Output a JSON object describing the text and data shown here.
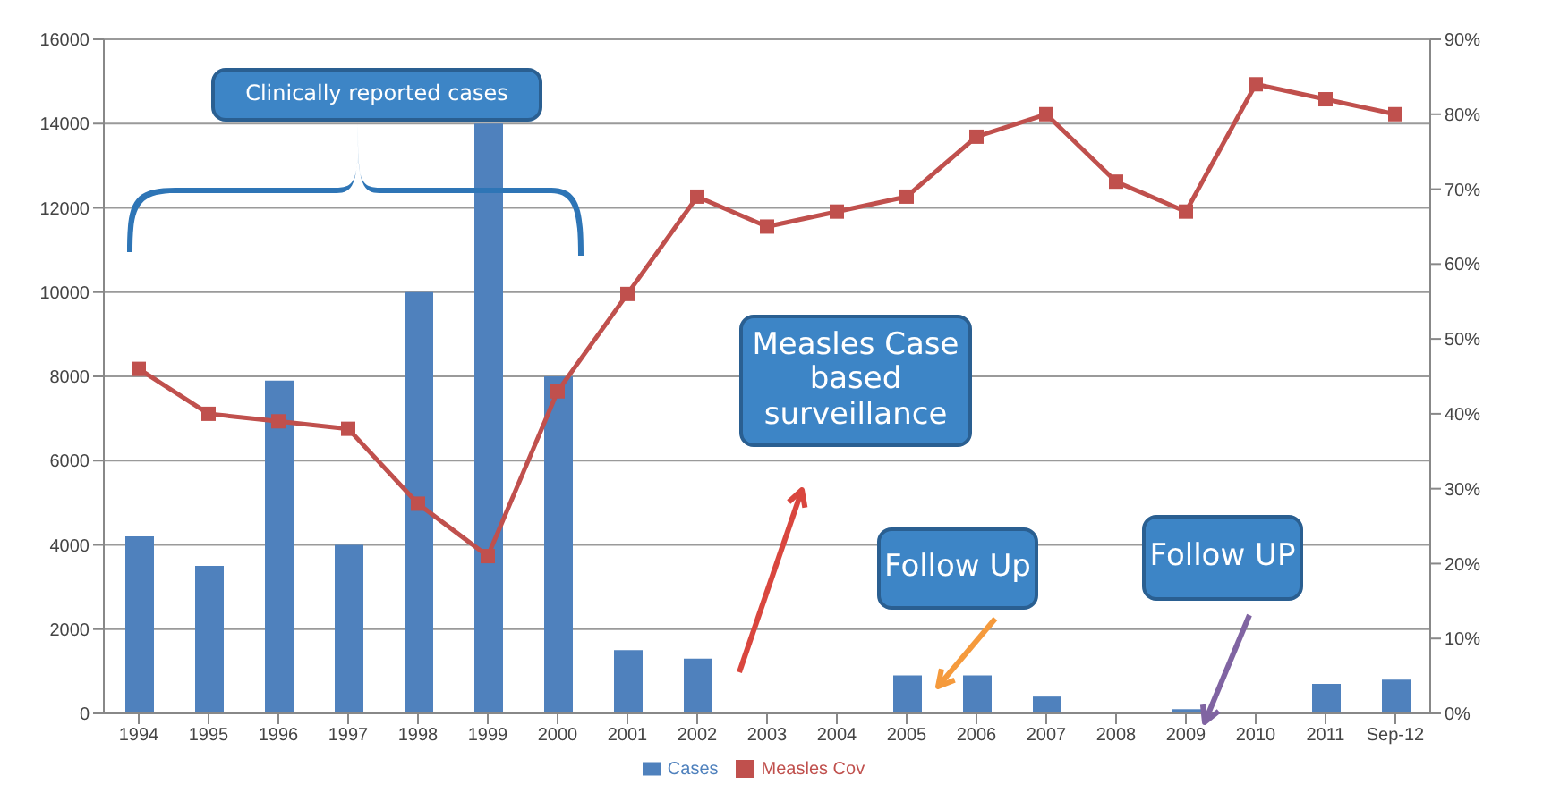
{
  "chart_data": {
    "type": "bar",
    "categories": [
      "1994",
      "1995",
      "1996",
      "1997",
      "1998",
      "1999",
      "2000",
      "2001",
      "2002",
      "2003",
      "2004",
      "2005",
      "2006",
      "2007",
      "2008",
      "2009",
      "2010",
      "2011",
      "Sep-12"
    ],
    "series": [
      {
        "name": "Cases",
        "color": "#4f81bd",
        "values": [
          4200,
          3500,
          7900,
          4000,
          10000,
          14000,
          8000,
          1500,
          1300,
          0,
          0,
          900,
          900,
          400,
          0,
          100,
          0,
          700,
          800
        ]
      },
      {
        "name": "Measles Cov",
        "type": "line",
        "axis": "y2",
        "color": "#c0504d",
        "marker": "square",
        "values": [
          46,
          40,
          39,
          38,
          28,
          21,
          43,
          56,
          69,
          65,
          67,
          69,
          77,
          80,
          71,
          67,
          84,
          82,
          80
        ]
      }
    ],
    "ylim": [
      0,
      16000
    ],
    "yticks": [
      0,
      2000,
      4000,
      6000,
      8000,
      10000,
      12000,
      14000,
      16000
    ],
    "y2lim": [
      0,
      90
    ],
    "y2ticks": [
      {
        "value": 0,
        "label": "0%"
      },
      {
        "value": 10,
        "label": "10%"
      },
      {
        "value": 20,
        "label": "20%"
      },
      {
        "value": 30,
        "label": "30%"
      },
      {
        "value": 40,
        "label": "40%"
      },
      {
        "value": 50,
        "label": "50%"
      },
      {
        "value": 60,
        "label": "60%"
      },
      {
        "value": 70,
        "label": "70%"
      },
      {
        "value": 80,
        "label": "80%"
      },
      {
        "value": 90,
        "label": "90%"
      }
    ],
    "grid": "y",
    "legend": "bottom",
    "annotations": [
      "Clinically reported cases",
      "Measles Case based surveillance",
      "Follow Up",
      "Follow UP"
    ]
  }
}
